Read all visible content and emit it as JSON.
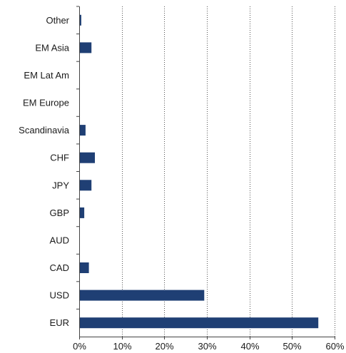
{
  "chart_data": {
    "type": "bar",
    "orientation": "horizontal",
    "title": "",
    "xlabel": "",
    "ylabel": "",
    "categories": [
      "Other",
      "EM Asia",
      "EM Lat Am",
      "EM Europe",
      "Scandinavia",
      "CHF",
      "JPY",
      "GBP",
      "AUD",
      "CAD",
      "USD",
      "EUR"
    ],
    "values": [
      0.4,
      2.8,
      0,
      0,
      1.4,
      3.6,
      2.8,
      1.1,
      0,
      2.2,
      29.3,
      56.1
    ],
    "xlim": [
      0,
      60
    ],
    "xticks": [
      "0%",
      "10%",
      "20%",
      "30%",
      "40%",
      "50%",
      "60%"
    ],
    "grid": "vertical dotted",
    "legend": "none",
    "bar_color": "#1f3f74"
  }
}
